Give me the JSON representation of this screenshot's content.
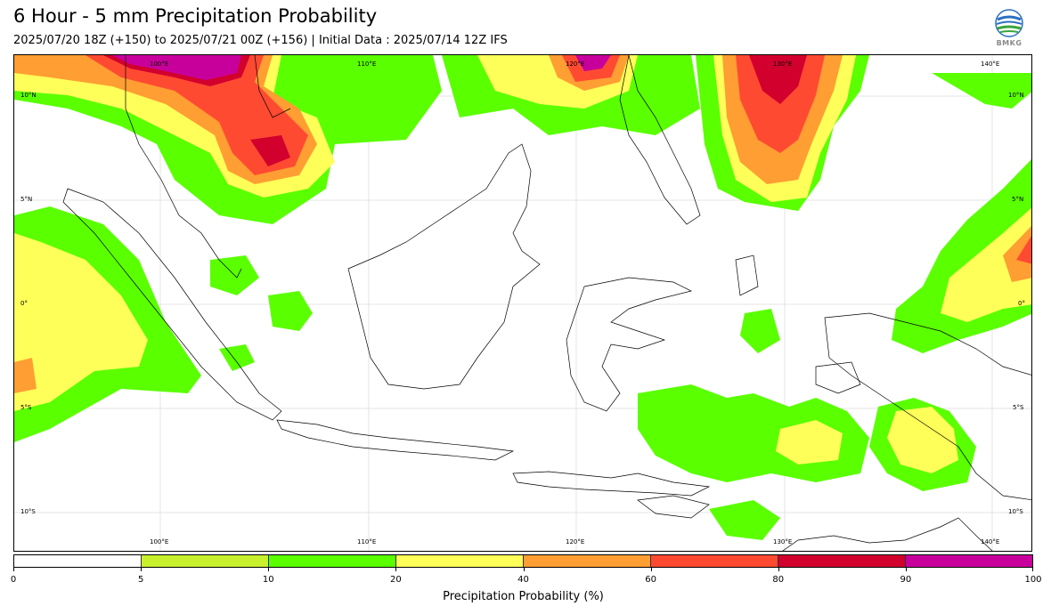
{
  "header": {
    "title": "6 Hour - 5 mm Precipitation Probability",
    "subtitle": "2025/07/20 18Z (+150) to 2025/07/21 00Z (+156) | Initial Data : 2025/07/14 12Z IFS",
    "logo_text": "BMKG"
  },
  "map": {
    "lon_labels": [
      "100°E",
      "110°E",
      "120°E",
      "130°E",
      "140°E"
    ],
    "lat_labels": [
      "10°N",
      "5°N",
      "0°",
      "5°S",
      "10°S"
    ],
    "colors": {
      "land_outline": "#000000",
      "grid": "#dddddd",
      "p5_10": "#c8f02d",
      "p10_20": "#5aff00",
      "p20_40": "#ffff5a",
      "p40_60": "#ff9e32",
      "p60_80": "#ff4a32",
      "p80_90": "#d2002d",
      "p90_100": "#c8009b"
    }
  },
  "colorbar": {
    "label": "Precipitation Probability (%)",
    "ticks": [
      "0",
      "5",
      "10",
      "20",
      "40",
      "60",
      "80",
      "90",
      "100"
    ],
    "colors": [
      "#ffffff",
      "#c8f02d",
      "#5aff00",
      "#ffff5a",
      "#ff9e32",
      "#ff4a32",
      "#d2002d",
      "#c8009b"
    ]
  }
}
